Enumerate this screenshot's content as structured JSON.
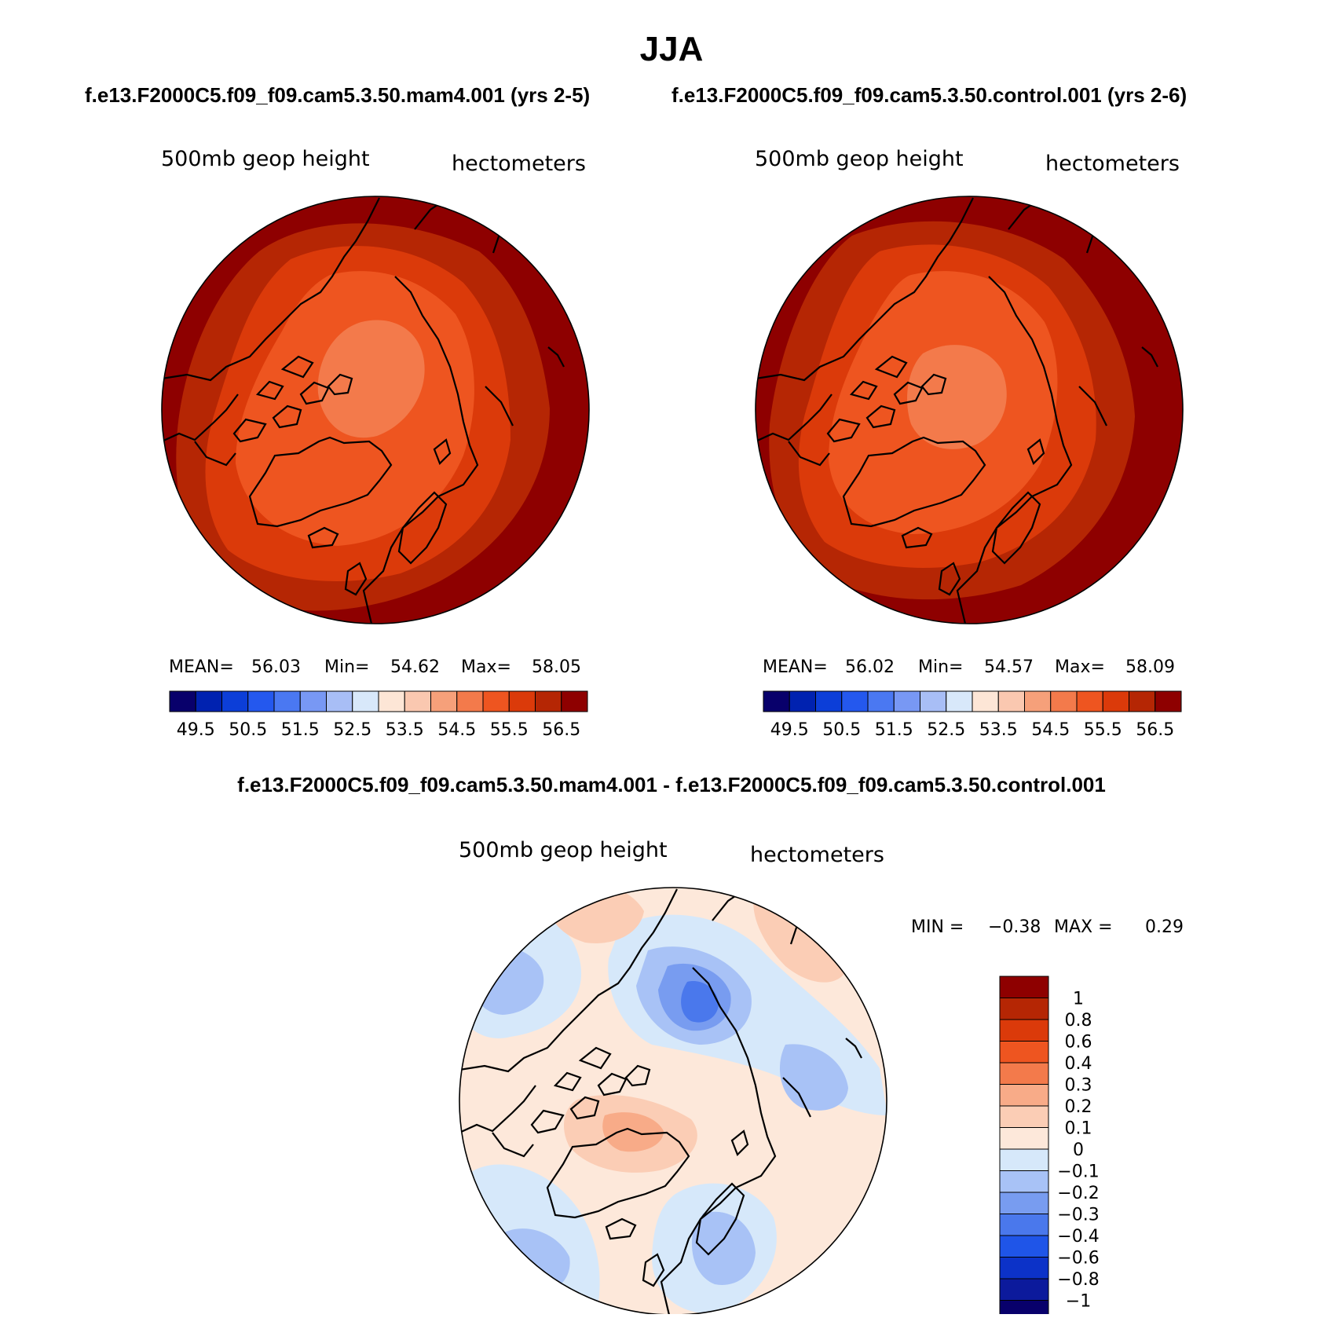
{
  "page": {
    "title": "JJA",
    "subtitle_left": "f.e13.F2000C5.f09_f09.cam5.3.50.mam4.001 (yrs 2-5)",
    "subtitle_right": "f.e13.F2000C5.f09_f09.cam5.3.50.control.001 (yrs 2-6)",
    "diff_title": "f.e13.F2000C5.f09_f09.cam5.3.50.mam4.001 - f.e13.F2000C5.f09_f09.cam5.3.50.control.001"
  },
  "colors": {
    "abs_scale": [
      "#08006b",
      "#0022b0",
      "#0c3ed8",
      "#2458ee",
      "#4a78f2",
      "#7898f4",
      "#a8bef6",
      "#d8e8fa",
      "#fde6d6",
      "#fac8b0",
      "#f6a07a",
      "#f37a4b",
      "#ee5520",
      "#db3a0a",
      "#b52604",
      "#8e0000"
    ],
    "diff_scale": [
      "#08006b",
      "#0c1a9c",
      "#0c32c8",
      "#1f55e8",
      "#4a78ec",
      "#789cf0",
      "#a8c2f6",
      "#d6e8fa",
      "#fde8da",
      "#fbcdb5",
      "#f8ab88",
      "#f37a4b",
      "#ee5520",
      "#db3a0a",
      "#b52604",
      "#8e0000"
    ],
    "land_outline": "#000000"
  },
  "chart_data": [
    {
      "type": "heatmap",
      "projection": "north-polar-stereographic",
      "panel": "top-left",
      "variable": "500mb geop height",
      "units": "hectometers",
      "stats": {
        "mean_label": "MEAN=",
        "mean": "56.03",
        "min_label": "Min=",
        "min": "54.62",
        "max_label": "Max=",
        "max": "58.05"
      },
      "levels": [
        49.5,
        50,
        50.5,
        51,
        51.5,
        52,
        52.5,
        53,
        53.5,
        54,
        54.5,
        55,
        55.5,
        56,
        56.5
      ],
      "colorbar_tick_labels": [
        "49.5",
        "50.5",
        "51.5",
        "52.5",
        "53.5",
        "54.5",
        "55.5",
        "56.5"
      ],
      "field_bands": [
        56.75,
        56.25,
        55.75,
        55.25,
        54.75
      ]
    },
    {
      "type": "heatmap",
      "projection": "north-polar-stereographic",
      "panel": "top-right",
      "variable": "500mb geop height",
      "units": "hectometers",
      "stats": {
        "mean_label": "MEAN=",
        "mean": "56.02",
        "min_label": "Min=",
        "min": "54.57",
        "max_label": "Max=",
        "max": "58.09"
      },
      "levels": [
        49.5,
        50,
        50.5,
        51,
        51.5,
        52,
        52.5,
        53,
        53.5,
        54,
        54.5,
        55,
        55.5,
        56,
        56.5
      ],
      "colorbar_tick_labels": [
        "49.5",
        "50.5",
        "51.5",
        "52.5",
        "53.5",
        "54.5",
        "55.5",
        "56.5"
      ],
      "field_bands": [
        56.75,
        56.25,
        55.75,
        55.25,
        54.75
      ]
    },
    {
      "type": "heatmap",
      "projection": "north-polar-stereographic",
      "panel": "bottom-difference",
      "variable": "500mb geop height",
      "units": "hectometers",
      "stats": {
        "min_label": "MIN =",
        "min": "−0.38",
        "max_label": "MAX =",
        "max": "0.29"
      },
      "levels": [
        -1,
        -0.8,
        -0.6,
        -0.4,
        -0.3,
        -0.2,
        -0.1,
        0,
        0.1,
        0.2,
        0.3,
        0.4,
        0.6,
        0.8,
        1
      ],
      "colorbar_tick_labels": [
        "1",
        "0.8",
        "0.6",
        "0.4",
        "0.3",
        "0.2",
        "0.1",
        "0",
        "−0.1",
        "−0.2",
        "−0.3",
        "−0.4",
        "−0.6",
        "−0.8",
        "−1"
      ],
      "field_bands": [
        -0.35,
        -0.25,
        -0.15,
        -0.05,
        0.05,
        0.15,
        0.25
      ]
    }
  ]
}
